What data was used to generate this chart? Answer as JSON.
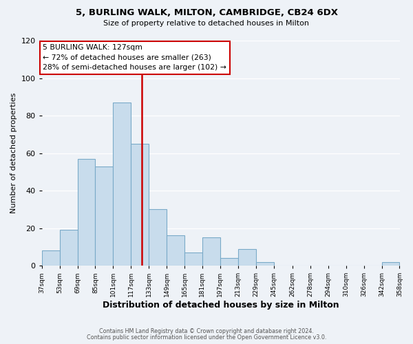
{
  "title": "5, BURLING WALK, MILTON, CAMBRIDGE, CB24 6DX",
  "subtitle": "Size of property relative to detached houses in Milton",
  "xlabel": "Distribution of detached houses by size in Milton",
  "ylabel": "Number of detached properties",
  "bar_color": "#c8dcec",
  "bar_edge_color": "#7aaac8",
  "bin_edges": [
    37,
    53,
    69,
    85,
    101,
    117,
    133,
    149,
    165,
    181,
    197,
    213,
    229,
    245,
    262,
    278,
    294,
    310,
    326,
    342,
    358
  ],
  "counts": [
    8,
    19,
    57,
    53,
    87,
    65,
    30,
    16,
    7,
    15,
    4,
    9,
    2,
    0,
    0,
    0,
    0,
    0,
    0,
    2
  ],
  "tick_labels": [
    "37sqm",
    "53sqm",
    "69sqm",
    "85sqm",
    "101sqm",
    "117sqm",
    "133sqm",
    "149sqm",
    "165sqm",
    "181sqm",
    "197sqm",
    "213sqm",
    "229sqm",
    "245sqm",
    "262sqm",
    "278sqm",
    "294sqm",
    "310sqm",
    "326sqm",
    "342sqm",
    "358sqm"
  ],
  "property_size": 127,
  "vline_color": "#cc0000",
  "annotation_line1": "5 BURLING WALK: 127sqm",
  "annotation_line2": "← 72% of detached houses are smaller (263)",
  "annotation_line3": "28% of semi-detached houses are larger (102) →",
  "annotation_box_edge_color": "#cc0000",
  "annotation_box_face_color": "#ffffff",
  "ylim": [
    0,
    120
  ],
  "yticks": [
    0,
    20,
    40,
    60,
    80,
    100,
    120
  ],
  "footer_line1": "Contains HM Land Registry data © Crown copyright and database right 2024.",
  "footer_line2": "Contains public sector information licensed under the Open Government Licence v3.0.",
  "background_color": "#eef2f7",
  "grid_color": "#ffffff",
  "xlabel_bold": true
}
